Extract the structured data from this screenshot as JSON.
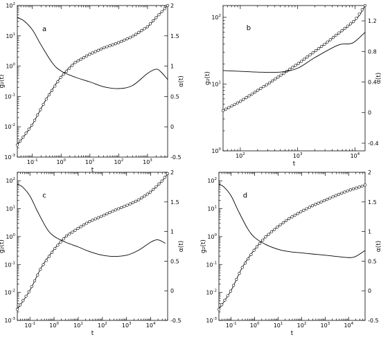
{
  "chart_data": [
    {
      "type": "line",
      "panel_label": "a",
      "xlabel": "t",
      "ylabel_left": "g₂(t)",
      "ylabel_right": "α(t)",
      "x_scale": "log",
      "y_left_scale": "log",
      "xlim": [
        0.03,
        5000
      ],
      "ylim_left": [
        0.001,
        100
      ],
      "ylim_right": [
        -0.5,
        2
      ],
      "x_ticks": [
        {
          "m": "10",
          "e": "-1",
          "v": 0.1
        },
        {
          "m": "10",
          "e": "0",
          "v": 1
        },
        {
          "m": "10",
          "e": "1",
          "v": 10
        },
        {
          "m": "10",
          "e": "2",
          "v": 100
        },
        {
          "m": "10",
          "e": "3",
          "v": 1000
        }
      ],
      "y_left_ticks": [
        {
          "m": "10",
          "e": "-3",
          "v": 0.001
        },
        {
          "m": "10",
          "e": "-2",
          "v": 0.01
        },
        {
          "m": "10",
          "e": "-1",
          "v": 0.1
        },
        {
          "m": "10",
          "e": "0",
          "v": 1
        },
        {
          "m": "10",
          "e": "1",
          "v": 10
        },
        {
          "m": "10",
          "e": "2",
          "v": 100
        }
      ],
      "y_right_ticks": [
        "-0.5",
        "0",
        "0.5",
        "1",
        "1.5",
        "2"
      ],
      "series": [
        {
          "axis": "left",
          "style": "line+circles",
          "x": [
            0.03,
            0.1,
            0.3,
            1,
            3,
            10,
            30,
            100,
            300,
            1000,
            2000,
            5000
          ],
          "y": [
            0.0025,
            0.012,
            0.08,
            0.45,
            1.3,
            2.5,
            4.0,
            6.0,
            9.5,
            20,
            40,
            100
          ]
        },
        {
          "axis": "right",
          "style": "line",
          "x": [
            0.03,
            0.05,
            0.1,
            0.2,
            0.5,
            1,
            3,
            10,
            30,
            100,
            300,
            1000,
            2000,
            3000,
            5000
          ],
          "y": [
            1.8,
            1.75,
            1.6,
            1.35,
            1.05,
            0.92,
            0.82,
            0.74,
            0.66,
            0.63,
            0.68,
            0.88,
            0.95,
            0.9,
            0.78
          ]
        }
      ]
    },
    {
      "type": "line",
      "panel_label": "b",
      "xlabel": "t",
      "ylabel_left": "g₂(t)",
      "ylabel_right": "α(t)",
      "x_scale": "log",
      "y_left_scale": "log",
      "xlim": [
        50,
        15000
      ],
      "ylim_left": [
        1,
        150
      ],
      "ylim_right": [
        -0.5,
        1.4
      ],
      "x_ticks": [
        {
          "m": "10",
          "e": "2",
          "v": 100
        },
        {
          "m": "10",
          "e": "3",
          "v": 1000
        },
        {
          "m": "10",
          "e": "4",
          "v": 10000
        }
      ],
      "y_left_ticks": [
        {
          "m": "10",
          "e": "0",
          "v": 1
        },
        {
          "m": "10",
          "e": "1",
          "v": 10
        },
        {
          "m": "10",
          "e": "2",
          "v": 100
        }
      ],
      "y_right_ticks": [
        "-0.4",
        "0",
        "0.4",
        "0.8",
        "1.2"
      ],
      "series": [
        {
          "axis": "left",
          "style": "line+circles",
          "x": [
            50,
            100,
            300,
            1000,
            3000,
            10000,
            15000
          ],
          "y": [
            4,
            5.5,
            10,
            20,
            40,
            90,
            150
          ]
        },
        {
          "axis": "right",
          "style": "line",
          "x": [
            50,
            100,
            200,
            500,
            1000,
            2000,
            5000,
            8000,
            10000,
            15000
          ],
          "y": [
            0.55,
            0.54,
            0.53,
            0.53,
            0.58,
            0.72,
            0.88,
            0.9,
            0.93,
            1.05
          ]
        }
      ]
    },
    {
      "type": "line",
      "panel_label": "c",
      "xlabel": "t",
      "ylabel_left": "g₂(t)",
      "ylabel_right": "α(t)",
      "x_scale": "log",
      "y_left_scale": "log",
      "xlim": [
        0.03,
        50000
      ],
      "ylim_left": [
        0.001,
        200
      ],
      "ylim_right": [
        -0.5,
        2
      ],
      "x_ticks": [
        {
          "m": "10",
          "e": "-1",
          "v": 0.1
        },
        {
          "m": "10",
          "e": "0",
          "v": 1
        },
        {
          "m": "10",
          "e": "1",
          "v": 10
        },
        {
          "m": "10",
          "e": "2",
          "v": 100
        },
        {
          "m": "10",
          "e": "3",
          "v": 1000
        },
        {
          "m": "10",
          "e": "4",
          "v": 10000
        }
      ],
      "y_left_ticks": [
        {
          "m": "10",
          "e": "-3",
          "v": 0.001
        },
        {
          "m": "10",
          "e": "-2",
          "v": 0.01
        },
        {
          "m": "10",
          "e": "-1",
          "v": 0.1
        },
        {
          "m": "10",
          "e": "0",
          "v": 1
        },
        {
          "m": "10",
          "e": "1",
          "v": 10
        },
        {
          "m": "10",
          "e": "2",
          "v": 100
        }
      ],
      "y_right_ticks": [
        "-0.5",
        "0",
        "0.5",
        "1",
        "1.5",
        "2"
      ],
      "series": [
        {
          "axis": "left",
          "style": "line+circles",
          "x": [
            0.03,
            0.1,
            0.3,
            1,
            3,
            10,
            30,
            100,
            300,
            1000,
            3000,
            10000,
            30000,
            50000
          ],
          "y": [
            0.0025,
            0.012,
            0.08,
            0.35,
            1.0,
            2.0,
            3.5,
            5.5,
            8.5,
            13,
            20,
            40,
            100,
            180
          ]
        },
        {
          "axis": "right",
          "style": "line",
          "x": [
            0.03,
            0.05,
            0.1,
            0.2,
            0.5,
            1,
            3,
            10,
            30,
            100,
            300,
            1000,
            3000,
            10000,
            20000,
            40000
          ],
          "y": [
            1.8,
            1.75,
            1.6,
            1.35,
            1.05,
            0.92,
            0.82,
            0.74,
            0.66,
            0.6,
            0.58,
            0.6,
            0.68,
            0.82,
            0.86,
            0.8
          ]
        }
      ]
    },
    {
      "type": "line",
      "panel_label": "d",
      "xlabel": "t",
      "ylabel_left": "g₂(t)",
      "ylabel_right": "α(t)",
      "x_scale": "log",
      "y_left_scale": "log",
      "xlim": [
        0.03,
        50000
      ],
      "ylim_left": [
        0.001,
        200
      ],
      "ylim_right": [
        -0.5,
        2
      ],
      "x_ticks": [
        {
          "m": "10",
          "e": "-1",
          "v": 0.1
        },
        {
          "m": "10",
          "e": "0",
          "v": 1
        },
        {
          "m": "10",
          "e": "1",
          "v": 10
        },
        {
          "m": "10",
          "e": "2",
          "v": 100
        },
        {
          "m": "10",
          "e": "3",
          "v": 1000
        },
        {
          "m": "10",
          "e": "4",
          "v": 10000
        }
      ],
      "y_left_ticks": [
        {
          "m": "10",
          "e": "-3",
          "v": 0.001
        },
        {
          "m": "10",
          "e": "-2",
          "v": 0.01
        },
        {
          "m": "10",
          "e": "-1",
          "v": 0.1
        },
        {
          "m": "10",
          "e": "0",
          "v": 1
        },
        {
          "m": "10",
          "e": "1",
          "v": 10
        },
        {
          "m": "10",
          "e": "2",
          "v": 100
        }
      ],
      "y_right_ticks": [
        "-0.5",
        "0",
        "0.5",
        "1",
        "1.5",
        "2"
      ],
      "series": [
        {
          "axis": "left",
          "style": "line+circles",
          "x": [
            0.03,
            0.1,
            0.3,
            1,
            3,
            10,
            30,
            100,
            300,
            1000,
            3000,
            10000,
            30000,
            50000
          ],
          "y": [
            0.0025,
            0.012,
            0.08,
            0.35,
            1.0,
            2.3,
            4.5,
            8,
            13,
            20,
            30,
            45,
            60,
            70
          ]
        },
        {
          "axis": "right",
          "style": "line",
          "x": [
            0.03,
            0.05,
            0.1,
            0.2,
            0.5,
            1,
            3,
            10,
            30,
            100,
            300,
            1000,
            3000,
            10000,
            20000,
            50000
          ],
          "y": [
            1.8,
            1.75,
            1.6,
            1.35,
            1.05,
            0.9,
            0.78,
            0.7,
            0.66,
            0.64,
            0.62,
            0.6,
            0.58,
            0.56,
            0.58,
            0.68
          ]
        }
      ]
    }
  ]
}
